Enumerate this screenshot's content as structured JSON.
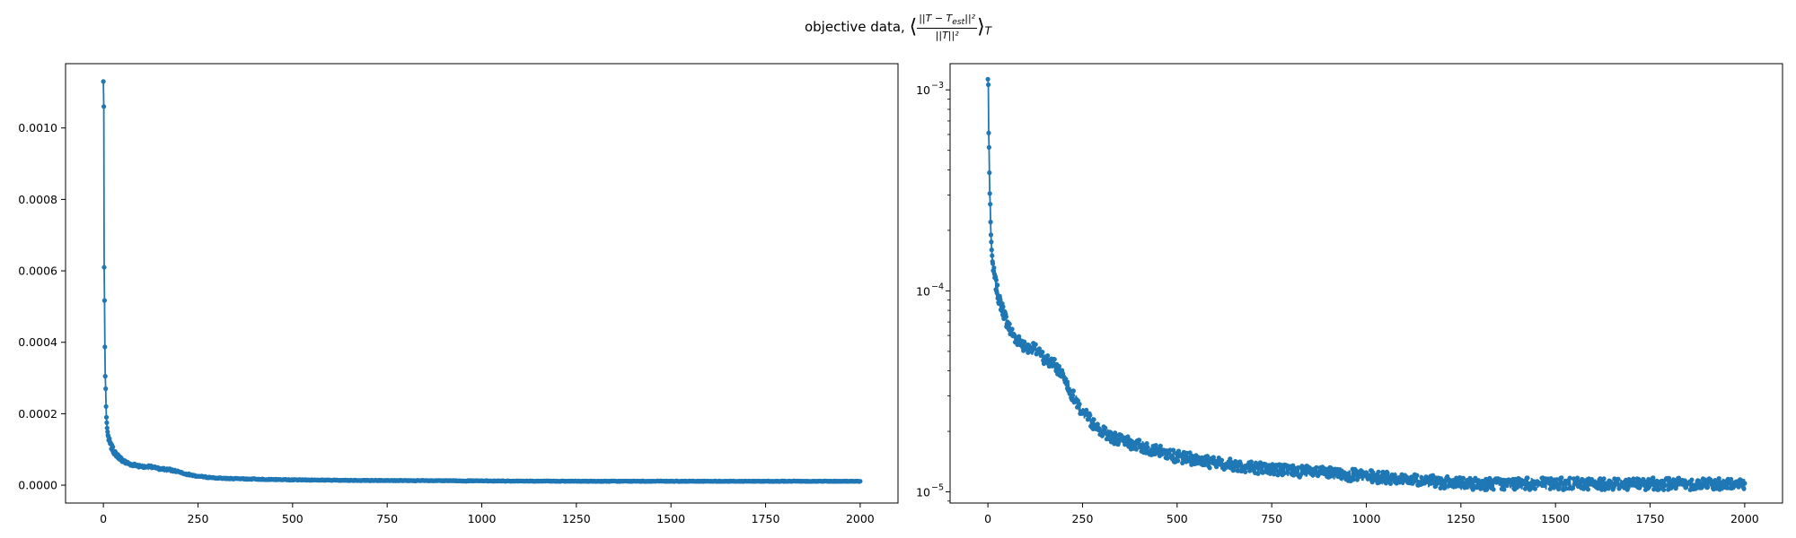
{
  "title": {
    "text": "objective data,",
    "math_numerator": "||T − T",
    "math_numerator_sub": "est",
    "math_numerator_end": "||²",
    "math_denominator": "||T||²",
    "math_open": "⟨",
    "math_close": "⟩",
    "math_subscript": "T"
  },
  "colors": {
    "series": "#1f77b4",
    "axes": "#000000",
    "background": "#ffffff"
  },
  "chart_data": [
    {
      "type": "line",
      "scale": "linear",
      "title": "",
      "xlabel": "",
      "ylabel": "",
      "xlim": [
        -100,
        2100
      ],
      "ylim": [
        -5e-05,
        0.00118
      ],
      "xticks": [
        0,
        250,
        500,
        750,
        1000,
        1250,
        1500,
        1750,
        2000
      ],
      "xtick_labels": [
        "0",
        "250",
        "500",
        "750",
        "1000",
        "1250",
        "1500",
        "1750",
        "2000"
      ],
      "yticks": [
        0,
        0.0002,
        0.0004,
        0.0006,
        0.0008,
        0.001
      ],
      "ytick_labels": [
        "0.0000",
        "0.0002",
        "0.0004",
        "0.0006",
        "0.0008",
        "0.0010"
      ],
      "marker": "o",
      "series": [
        {
          "name": "objective",
          "x": [
            0,
            1,
            2,
            3,
            4,
            5,
            6,
            7,
            8,
            9,
            10,
            12,
            15,
            20,
            25,
            30,
            40,
            50,
            60,
            75,
            100,
            125,
            150,
            175,
            200,
            225,
            250,
            300,
            350,
            400,
            500,
            600,
            750,
            1000,
            1250,
            1500,
            1750,
            2000
          ],
          "values": [
            0.00113,
            0.00106,
            0.00061,
            0.000517,
            0.000387,
            0.000305,
            0.00027,
            0.00022,
            0.00019,
            0.000175,
            0.00016,
            0.00014,
            0.000125,
            0.00011,
            0.0001,
            9e-05,
            8e-05,
            7e-05,
            6.3e-05,
            5.8e-05,
            5.3e-05,
            5.1e-05,
            4.6e-05,
            4.3e-05,
            3.8e-05,
            3e-05,
            2.5e-05,
            2e-05,
            1.8e-05,
            1.7e-05,
            1.5e-05,
            1.4e-05,
            1.3e-05,
            1.2e-05,
            1.1e-05,
            1.1e-05,
            1.1e-05,
            1.1e-05
          ]
        }
      ]
    },
    {
      "type": "line",
      "scale": "log",
      "title": "",
      "xlabel": "",
      "ylabel": "",
      "xlim": [
        -100,
        2100
      ],
      "ylim": [
        8.8e-06,
        0.00135
      ],
      "xticks": [
        0,
        250,
        500,
        750,
        1000,
        1250,
        1500,
        1750,
        2000
      ],
      "xtick_labels": [
        "0",
        "250",
        "500",
        "750",
        "1000",
        "1250",
        "1500",
        "1750",
        "2000"
      ],
      "yticks": [
        1e-05,
        0.0001,
        0.001
      ],
      "ytick_bases": [
        "10",
        "10",
        "10"
      ],
      "ytick_exponents": [
        "−5",
        "−4",
        "−3"
      ],
      "marker": "o",
      "series": [
        {
          "name": "objective",
          "x": [
            0,
            1,
            2,
            3,
            4,
            5,
            6,
            7,
            8,
            9,
            10,
            12,
            15,
            20,
            25,
            30,
            40,
            50,
            60,
            75,
            100,
            125,
            150,
            175,
            200,
            225,
            250,
            300,
            350,
            400,
            500,
            600,
            750,
            1000,
            1250,
            1500,
            1750,
            2000
          ],
          "values": [
            0.00113,
            0.00106,
            0.00061,
            0.000517,
            0.000387,
            0.000305,
            0.00027,
            0.00022,
            0.00019,
            0.000175,
            0.00016,
            0.00014,
            0.000125,
            0.00011,
            0.0001,
            9e-05,
            8e-05,
            7e-05,
            6.3e-05,
            5.8e-05,
            5.3e-05,
            5.1e-05,
            4.6e-05,
            4.3e-05,
            3.8e-05,
            3e-05,
            2.5e-05,
            2e-05,
            1.8e-05,
            1.7e-05,
            1.5e-05,
            1.4e-05,
            1.3e-05,
            1.2e-05,
            1.1e-05,
            1.1e-05,
            1.1e-05,
            1.1e-05
          ]
        }
      ]
    }
  ]
}
